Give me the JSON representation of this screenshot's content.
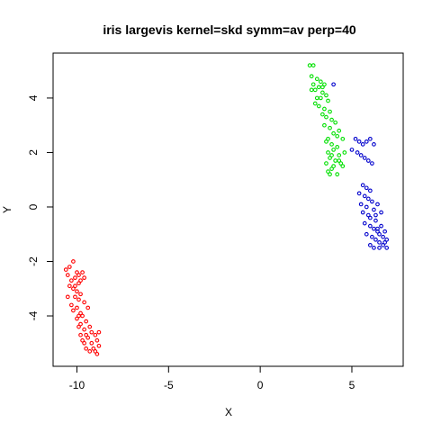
{
  "chart_data": {
    "type": "scatter",
    "title": "iris largevis kernel=skd symm=av perp=40",
    "xlabel": "X",
    "ylabel": "Y",
    "xlim": [
      -11.3,
      7.8
    ],
    "ylim": [
      -5.85,
      5.65
    ],
    "xticks": [
      -10,
      -5,
      0,
      5
    ],
    "yticks": [
      -4,
      -2,
      0,
      2,
      4
    ],
    "grid": false,
    "legend": "none",
    "series": [
      {
        "color": "#ff0000",
        "x": [
          -10.6,
          -10.4,
          -10.2,
          -10.0,
          -9.9,
          -9.7,
          -9.6,
          -10.5,
          -10.3,
          -10.1,
          -9.9,
          -9.8,
          -10.4,
          -10.2,
          -10.0,
          -9.8,
          -10.5,
          -10.1,
          -9.9,
          -9.6,
          -10.3,
          -10.0,
          -9.8,
          -10.2,
          -9.9,
          -9.7,
          -9.5,
          -10.0,
          -9.8,
          -9.4,
          -9.9,
          -9.6,
          -9.3,
          -9.8,
          -9.5,
          -9.2,
          -9.7,
          -9.4,
          -9.0,
          -9.6,
          -9.2,
          -8.9,
          -9.5,
          -9.1,
          -8.8,
          -9.3,
          -8.9,
          -9.0,
          -8.8,
          -10.1
        ],
        "y": [
          -2.3,
          -2.2,
          -2.0,
          -2.4,
          -2.5,
          -2.4,
          -2.6,
          -2.5,
          -2.7,
          -2.6,
          -2.8,
          -2.7,
          -2.9,
          -3.0,
          -3.1,
          -3.2,
          -3.3,
          -3.3,
          -3.4,
          -3.5,
          -3.6,
          -3.7,
          -3.9,
          -3.8,
          -4.0,
          -4.0,
          -4.2,
          -4.1,
          -4.3,
          -3.7,
          -4.4,
          -4.5,
          -4.4,
          -4.7,
          -4.7,
          -4.6,
          -4.9,
          -4.8,
          -4.7,
          -5.0,
          -5.0,
          -4.9,
          -5.2,
          -5.2,
          -5.1,
          -5.3,
          -5.4,
          -5.3,
          -4.6,
          -2.9
        ]
      },
      {
        "color": "#00e000",
        "x": [
          2.7,
          2.9,
          2.8,
          3.1,
          3.3,
          2.9,
          3.5,
          3.2,
          2.8,
          3.0,
          3.4,
          3.6,
          3.1,
          3.3,
          3.7,
          3.0,
          3.2,
          3.5,
          3.8,
          3.4,
          3.6,
          3.9,
          4.1,
          3.5,
          3.8,
          4.3,
          4.0,
          4.2,
          3.7,
          4.5,
          3.6,
          3.9,
          4.2,
          4.0,
          4.6,
          3.7,
          4.3,
          3.8,
          4.1,
          4.4,
          3.6,
          4.0,
          3.9,
          3.7,
          3.8,
          4.2,
          4.5,
          4.3,
          3.9,
          3.4
        ],
        "y": [
          5.2,
          5.2,
          4.8,
          4.7,
          4.6,
          4.5,
          4.5,
          4.4,
          4.3,
          4.3,
          4.2,
          4.1,
          4.0,
          4.0,
          3.9,
          3.8,
          3.7,
          3.6,
          3.5,
          3.4,
          3.3,
          3.2,
          3.1,
          3.0,
          2.9,
          2.8,
          2.7,
          2.6,
          2.5,
          2.5,
          2.4,
          2.3,
          2.2,
          2.1,
          2.0,
          2.0,
          1.9,
          1.8,
          1.7,
          1.6,
          1.6,
          1.5,
          1.4,
          1.3,
          1.2,
          1.2,
          1.5,
          1.7,
          1.9,
          4.4
        ]
      },
      {
        "color": "#0000cc",
        "x": [
          4.0,
          5.2,
          5.4,
          5.6,
          5.8,
          6.0,
          6.2,
          5.0,
          5.3,
          5.5,
          5.7,
          5.9,
          6.1,
          5.6,
          5.8,
          6.0,
          5.4,
          5.7,
          5.9,
          6.1,
          5.5,
          5.8,
          6.2,
          5.6,
          5.9,
          6.0,
          6.3,
          5.7,
          6.0,
          6.2,
          6.4,
          5.8,
          6.1,
          6.3,
          6.5,
          6.0,
          6.2,
          6.5,
          6.7,
          6.4,
          6.6,
          6.8,
          6.5,
          6.7,
          6.9,
          6.3,
          6.6,
          6.8,
          6.4,
          6.9
        ],
        "y": [
          4.5,
          2.5,
          2.4,
          2.3,
          2.4,
          2.5,
          2.3,
          2.1,
          2.0,
          1.9,
          1.8,
          1.7,
          1.6,
          0.8,
          0.7,
          0.6,
          0.5,
          0.4,
          0.3,
          0.2,
          0.1,
          0.0,
          -0.1,
          -0.2,
          -0.3,
          -0.4,
          -0.5,
          -0.6,
          -0.7,
          -0.8,
          -0.9,
          -1.0,
          -1.1,
          -1.2,
          -1.3,
          -1.4,
          -1.5,
          -1.5,
          -1.4,
          -0.8,
          -0.7,
          -0.9,
          -1.0,
          -1.1,
          -1.2,
          -0.3,
          -0.2,
          -1.3,
          0.1,
          -1.5
        ]
      }
    ]
  }
}
